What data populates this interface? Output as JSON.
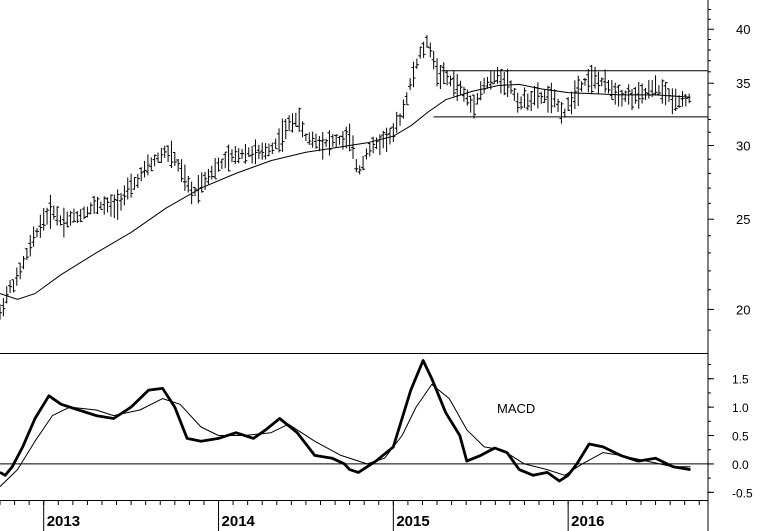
{
  "chart_data": [
    {
      "type": "ohlc",
      "panel": "price",
      "title": "",
      "xlabel": "",
      "ylabel": "",
      "y_scale": "log",
      "ylim": [
        18,
        43
      ],
      "y_ticks": [
        {
          "value": 40,
          "label": "40"
        },
        {
          "value": 35,
          "label": "35"
        },
        {
          "value": 30,
          "label": "30"
        },
        {
          "value": 25,
          "label": "25"
        },
        {
          "value": 20,
          "label": "20"
        }
      ],
      "x_range": [
        2012.75,
        2016.8
      ],
      "x_ticks": [
        {
          "value": 2013.0,
          "label": "2013"
        },
        {
          "value": 2014.0,
          "label": "2014"
        },
        {
          "value": 2015.0,
          "label": "2015"
        },
        {
          "value": 2016.0,
          "label": "2016"
        }
      ],
      "price_path": [
        [
          2012.75,
          19.8
        ],
        [
          2012.8,
          21.0
        ],
        [
          2012.85,
          21.6
        ],
        [
          2012.9,
          22.8
        ],
        [
          2012.95,
          24.0
        ],
        [
          2013.0,
          25.0
        ],
        [
          2013.05,
          25.6
        ],
        [
          2013.1,
          24.9
        ],
        [
          2013.2,
          25.2
        ],
        [
          2013.3,
          25.9
        ],
        [
          2013.4,
          25.8
        ],
        [
          2013.5,
          27.0
        ],
        [
          2013.6,
          28.5
        ],
        [
          2013.7,
          29.6
        ],
        [
          2013.75,
          29.0
        ],
        [
          2013.85,
          26.6
        ],
        [
          2013.95,
          28.0
        ],
        [
          2014.05,
          29.0
        ],
        [
          2014.15,
          29.5
        ],
        [
          2014.25,
          29.4
        ],
        [
          2014.32,
          30.0
        ],
        [
          2014.4,
          31.5
        ],
        [
          2014.45,
          32.2
        ],
        [
          2014.5,
          30.6
        ],
        [
          2014.6,
          30.2
        ],
        [
          2014.7,
          30.4
        ],
        [
          2014.75,
          30.6
        ],
        [
          2014.8,
          28.0
        ],
        [
          2014.85,
          29.6
        ],
        [
          2014.95,
          30.5
        ],
        [
          2015.0,
          30.9
        ],
        [
          2015.05,
          32.5
        ],
        [
          2015.1,
          35.0
        ],
        [
          2015.15,
          37.5
        ],
        [
          2015.2,
          38.8
        ],
        [
          2015.25,
          36.0
        ],
        [
          2015.3,
          35.5
        ],
        [
          2015.38,
          34.6
        ],
        [
          2015.45,
          33.1
        ],
        [
          2015.52,
          34.8
        ],
        [
          2015.6,
          35.6
        ],
        [
          2015.66,
          35.0
        ],
        [
          2015.72,
          33.3
        ],
        [
          2015.8,
          33.8
        ],
        [
          2015.9,
          33.8
        ],
        [
          2015.98,
          32.5
        ],
        [
          2016.05,
          34.5
        ],
        [
          2016.12,
          35.5
        ],
        [
          2016.2,
          35.0
        ],
        [
          2016.3,
          34.0
        ],
        [
          2016.4,
          33.8
        ],
        [
          2016.5,
          34.6
        ],
        [
          2016.55,
          34.2
        ],
        [
          2016.6,
          33.6
        ],
        [
          2016.7,
          33.7
        ]
      ],
      "moving_average": [
        [
          2012.75,
          20.8
        ],
        [
          2012.85,
          20.5
        ],
        [
          2012.95,
          20.8
        ],
        [
          2013.1,
          21.8
        ],
        [
          2013.3,
          23.0
        ],
        [
          2013.5,
          24.2
        ],
        [
          2013.7,
          25.7
        ],
        [
          2013.9,
          27.0
        ],
        [
          2014.1,
          28.0
        ],
        [
          2014.3,
          28.9
        ],
        [
          2014.5,
          29.5
        ],
        [
          2014.7,
          29.9
        ],
        [
          2014.85,
          30.2
        ],
        [
          2015.0,
          30.7
        ],
        [
          2015.1,
          31.5
        ],
        [
          2015.2,
          32.6
        ],
        [
          2015.3,
          33.6
        ],
        [
          2015.45,
          34.3
        ],
        [
          2015.6,
          34.8
        ],
        [
          2015.72,
          34.9
        ],
        [
          2015.85,
          34.5
        ],
        [
          2016.0,
          34.2
        ],
        [
          2016.15,
          34.1
        ],
        [
          2016.3,
          34.0
        ],
        [
          2016.5,
          34.0
        ],
        [
          2016.7,
          33.8
        ]
      ],
      "trading_range": {
        "upper": 36.1,
        "lower": 32.2,
        "x_start": 2015.23,
        "x_end": 2016.8
      }
    },
    {
      "type": "line",
      "panel": "indicator",
      "title": "MACD",
      "xlabel": "",
      "ylabel": "",
      "ylim": [
        -0.6,
        1.9
      ],
      "y_ticks": [
        {
          "value": 1.5,
          "label": "1.5"
        },
        {
          "value": 1.0,
          "label": "1.0"
        },
        {
          "value": 0.5,
          "label": "0.5"
        },
        {
          "value": 0.0,
          "label": "0.0"
        },
        {
          "value": -0.5,
          "label": "-0.5"
        }
      ],
      "zero_line": 0,
      "series": [
        {
          "style": "thick",
          "points": [
            [
              2012.75,
              -0.15
            ],
            [
              2012.78,
              -0.2
            ],
            [
              2012.82,
              -0.05
            ],
            [
              2012.88,
              0.3
            ],
            [
              2012.95,
              0.8
            ],
            [
              2013.03,
              1.2
            ],
            [
              2013.1,
              1.05
            ],
            [
              2013.2,
              0.95
            ],
            [
              2013.3,
              0.85
            ],
            [
              2013.4,
              0.8
            ],
            [
              2013.5,
              1.0
            ],
            [
              2013.6,
              1.3
            ],
            [
              2013.68,
              1.33
            ],
            [
              2013.75,
              1.0
            ],
            [
              2013.82,
              0.45
            ],
            [
              2013.9,
              0.4
            ],
            [
              2014.0,
              0.45
            ],
            [
              2014.1,
              0.55
            ],
            [
              2014.2,
              0.45
            ],
            [
              2014.27,
              0.6
            ],
            [
              2014.35,
              0.8
            ],
            [
              2014.45,
              0.55
            ],
            [
              2014.55,
              0.15
            ],
            [
              2014.65,
              0.1
            ],
            [
              2014.72,
              0.0
            ],
            [
              2014.75,
              -0.1
            ],
            [
              2014.8,
              -0.15
            ],
            [
              2014.9,
              0.05
            ],
            [
              2015.0,
              0.3
            ],
            [
              2015.1,
              1.3
            ],
            [
              2015.17,
              1.82
            ],
            [
              2015.22,
              1.5
            ],
            [
              2015.3,
              0.9
            ],
            [
              2015.38,
              0.5
            ],
            [
              2015.42,
              0.05
            ],
            [
              2015.5,
              0.15
            ],
            [
              2015.58,
              0.28
            ],
            [
              2015.65,
              0.2
            ],
            [
              2015.72,
              -0.1
            ],
            [
              2015.8,
              -0.2
            ],
            [
              2015.88,
              -0.15
            ],
            [
              2015.95,
              -0.3
            ],
            [
              2016.0,
              -0.2
            ],
            [
              2016.05,
              0.0
            ],
            [
              2016.12,
              0.35
            ],
            [
              2016.2,
              0.3
            ],
            [
              2016.3,
              0.15
            ],
            [
              2016.4,
              0.05
            ],
            [
              2016.5,
              0.1
            ],
            [
              2016.6,
              -0.05
            ],
            [
              2016.7,
              -0.1
            ]
          ]
        },
        {
          "style": "thin",
          "points": [
            [
              2012.75,
              -0.4
            ],
            [
              2012.85,
              -0.1
            ],
            [
              2012.95,
              0.4
            ],
            [
              2013.05,
              0.85
            ],
            [
              2013.15,
              1.0
            ],
            [
              2013.3,
              0.95
            ],
            [
              2013.4,
              0.85
            ],
            [
              2013.55,
              0.95
            ],
            [
              2013.68,
              1.15
            ],
            [
              2013.78,
              1.05
            ],
            [
              2013.9,
              0.65
            ],
            [
              2014.0,
              0.5
            ],
            [
              2014.15,
              0.5
            ],
            [
              2014.3,
              0.55
            ],
            [
              2014.4,
              0.7
            ],
            [
              2014.55,
              0.4
            ],
            [
              2014.7,
              0.15
            ],
            [
              2014.85,
              0.0
            ],
            [
              2014.95,
              0.1
            ],
            [
              2015.05,
              0.5
            ],
            [
              2015.13,
              1.0
            ],
            [
              2015.22,
              1.4
            ],
            [
              2015.32,
              1.15
            ],
            [
              2015.42,
              0.6
            ],
            [
              2015.52,
              0.3
            ],
            [
              2015.62,
              0.25
            ],
            [
              2015.75,
              0.0
            ],
            [
              2015.88,
              -0.1
            ],
            [
              2015.98,
              -0.2
            ],
            [
              2016.08,
              0.0
            ],
            [
              2016.2,
              0.2
            ],
            [
              2016.3,
              0.15
            ],
            [
              2016.45,
              0.05
            ],
            [
              2016.6,
              -0.05
            ],
            [
              2016.7,
              -0.05
            ]
          ]
        }
      ]
    }
  ]
}
